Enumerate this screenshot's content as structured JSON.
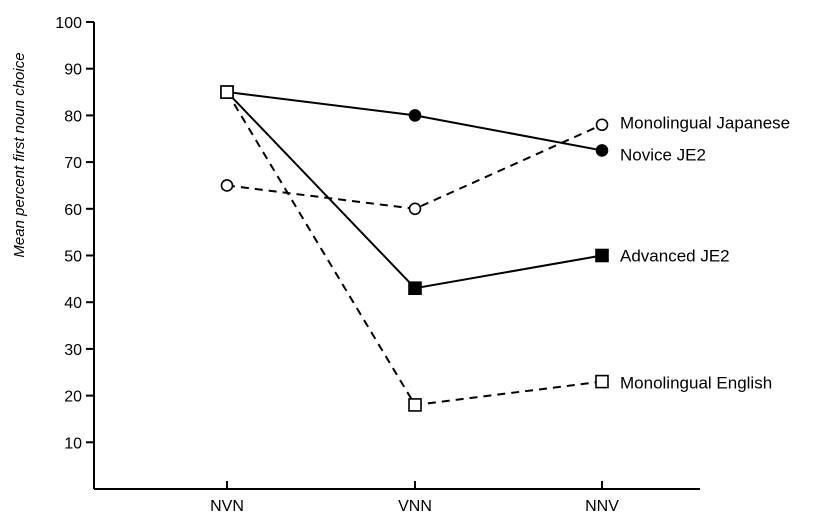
{
  "chart_data": {
    "type": "line",
    "title": "",
    "xlabel": "",
    "ylabel": "Mean percent first noun choice",
    "categories": [
      "NVN",
      "VNN",
      "NNV"
    ],
    "ylim": [
      0,
      100
    ],
    "yticks": [
      10,
      20,
      30,
      40,
      50,
      60,
      70,
      80,
      90,
      100
    ],
    "grid": false,
    "legend": "inline at right end of each series",
    "series": [
      {
        "name": "Monolingual Japanese",
        "values": [
          65,
          60,
          78
        ],
        "marker": "circle-open",
        "line": "dashed"
      },
      {
        "name": "Novice JE2",
        "values": [
          85,
          80,
          72.5
        ],
        "marker": "circle-filled",
        "line": "solid"
      },
      {
        "name": "Advanced JE2",
        "values": [
          85,
          43,
          50
        ],
        "marker": "square-filled",
        "line": "solid"
      },
      {
        "name": "Monolingual English",
        "values": [
          85,
          18,
          23
        ],
        "marker": "square-open",
        "line": "dashed"
      }
    ]
  }
}
